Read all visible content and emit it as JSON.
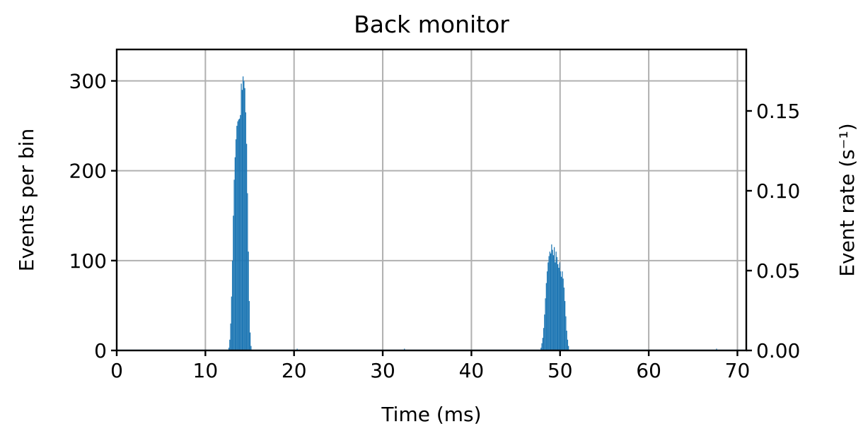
{
  "chart_data": {
    "type": "bar",
    "title": "Back monitor",
    "xlabel": "Time (ms)",
    "ylabel": "Events per bin",
    "y2label": "Event rate (s⁻¹)",
    "xlim": [
      0,
      71
    ],
    "ylim": [
      0,
      335
    ],
    "y2lim": [
      0,
      0.1885
    ],
    "xticks": [
      "0",
      "10",
      "20",
      "30",
      "40",
      "50",
      "60",
      "70"
    ],
    "yticks": [
      "0",
      "100",
      "200",
      "300"
    ],
    "y2ticks": [
      "0.00",
      "0.05",
      "0.10",
      "0.15"
    ],
    "grid": true,
    "bar_color": "#1f77b4",
    "bin_width": 0.1,
    "peaks": [
      {
        "start": 12.6,
        "counts": [
          3,
          12,
          30,
          60,
          100,
          150,
          190,
          215,
          235,
          250,
          255,
          257,
          258,
          262,
          297,
          290,
          305,
          300,
          292,
          265,
          230,
          175,
          110,
          55,
          20,
          5
        ]
      },
      {
        "start": 47.8,
        "counts": [
          3,
          8,
          14,
          25,
          40,
          58,
          75,
          88,
          98,
          105,
          110,
          108,
          118,
          112,
          106,
          115,
          98,
          110,
          104,
          96,
          92,
          98,
          88,
          82,
          88,
          80,
          70,
          55,
          38,
          22,
          12,
          5
        ]
      }
    ],
    "baseline_spikes": [
      {
        "x": 20.3,
        "count": 2
      },
      {
        "x": 32.4,
        "count": 2
      },
      {
        "x": 67.6,
        "count": 2
      }
    ]
  }
}
